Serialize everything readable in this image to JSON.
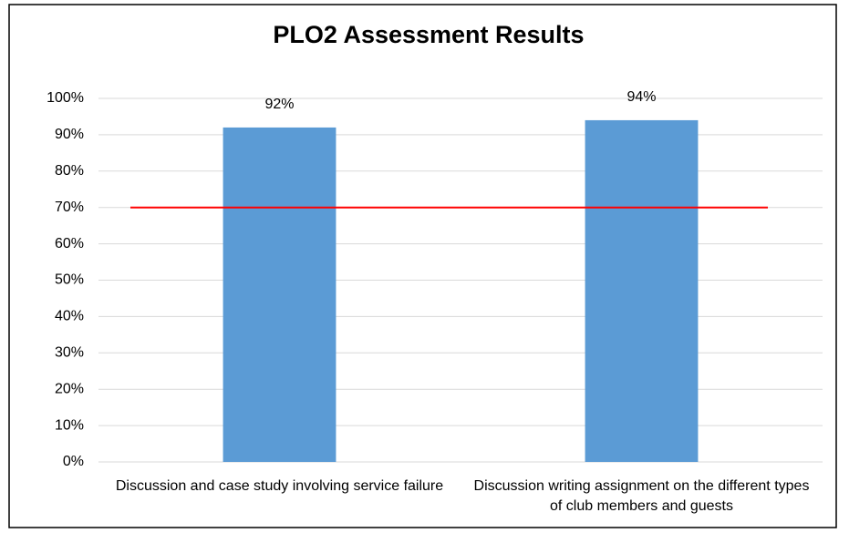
{
  "chart_data": {
    "type": "bar",
    "title": "PLO2 Assessment Results",
    "categories": [
      "Discussion and case study involving service failure",
      "Discussion writing assignment on the different types of club members and guests"
    ],
    "values": [
      92,
      94
    ],
    "value_labels": [
      "92%",
      "94%"
    ],
    "color": "#5b9bd5",
    "ylim": [
      0,
      100
    ],
    "yticks": [
      {
        "value": 0,
        "label": "0%"
      },
      {
        "value": 10,
        "label": "10%"
      },
      {
        "value": 20,
        "label": "20%"
      },
      {
        "value": 30,
        "label": "30%"
      },
      {
        "value": 40,
        "label": "40%"
      },
      {
        "value": 50,
        "label": "50%"
      },
      {
        "value": 60,
        "label": "60%"
      },
      {
        "value": 70,
        "label": "70%"
      },
      {
        "value": 80,
        "label": "80%"
      },
      {
        "value": 90,
        "label": "90%"
      },
      {
        "value": 100,
        "label": "100%"
      }
    ],
    "grid": true,
    "reference_line": {
      "value": 70,
      "color": "#ff0000"
    }
  }
}
